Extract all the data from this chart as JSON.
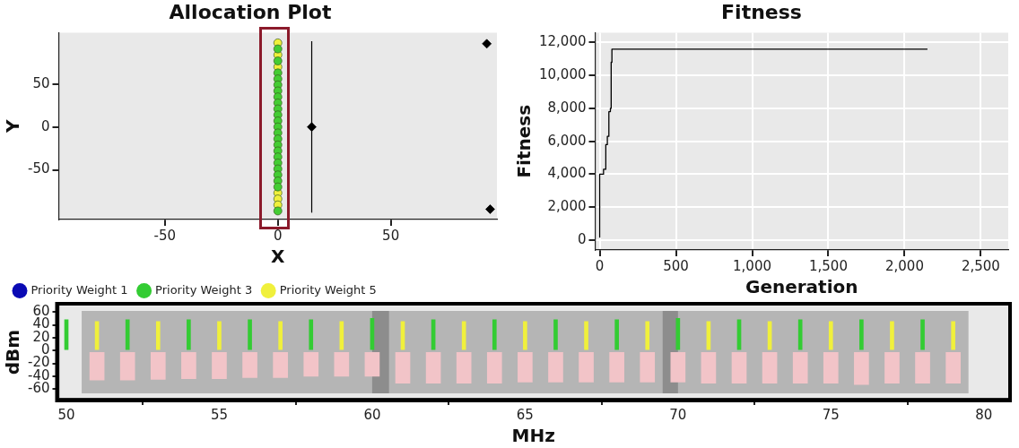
{
  "chart_data": [
    {
      "type": "scatter",
      "title": "Allocation Plot",
      "xlabel": "X",
      "ylabel": "Y",
      "xlim": [
        -97,
        97
      ],
      "ylim": [
        -108,
        110
      ],
      "xticks": [
        -50,
        0,
        50
      ],
      "yticks": [
        -50,
        0,
        50
      ],
      "grid": false,
      "legend": false,
      "marker": "circle",
      "series": [
        {
          "color": "#44cc33",
          "x": [
            0,
            0,
            0,
            0,
            0,
            0,
            0,
            0,
            0,
            0,
            0,
            0,
            0,
            0,
            0,
            0,
            0,
            0,
            0,
            0,
            0,
            0,
            0
          ],
          "values": [
            91,
            77,
            63,
            56,
            49,
            42,
            35,
            28,
            21,
            14,
            7,
            0,
            -7,
            -14,
            -21,
            -28,
            -35,
            -42,
            -49,
            -56,
            -63,
            -70,
            -98
          ]
        },
        {
          "color": "#f0f03c",
          "x": [
            0,
            0,
            0,
            0,
            0,
            0
          ],
          "values": [
            98,
            84,
            70,
            -77,
            -84,
            -91
          ]
        },
        {
          "color": "#000000",
          "marker": "diamond",
          "x": [
            15,
            92.5,
            94
          ],
          "values": [
            0,
            97,
            -96
          ],
          "errors": [
            [
              -100,
              100
            ],
            null,
            null
          ]
        }
      ]
    },
    {
      "type": "step",
      "title": "Fitness",
      "xlabel": "Generation",
      "ylabel": "Fitness",
      "xlim": [
        -30,
        2680
      ],
      "ylim": [
        -600,
        12600
      ],
      "xticks": [
        0,
        500,
        {
          "value": 1000,
          "label": "1,000"
        },
        {
          "value": 1500,
          "label": "1,500"
        },
        {
          "value": 2000,
          "label": "2,000"
        },
        {
          "value": 2500,
          "label": "2,500"
        }
      ],
      "yticks": [
        0,
        {
          "value": 2000,
          "label": "2,000"
        },
        {
          "value": 4000,
          "label": "4,000"
        },
        {
          "value": 6000,
          "label": "6,000"
        },
        {
          "value": 8000,
          "label": "8,000"
        },
        {
          "value": 10000,
          "label": "10,000"
        },
        {
          "value": 12000,
          "label": "12,000"
        }
      ],
      "grid": true,
      "legend": false,
      "series": [
        {
          "color": "#000000",
          "x": [
            0,
            25,
            40,
            50,
            60,
            70,
            75,
            80,
            140,
            2150
          ],
          "values": [
            150,
            4000,
            4300,
            5800,
            6300,
            7800,
            8000,
            10800,
            11600,
            11600
          ]
        }
      ]
    },
    {
      "type": "bar",
      "xlabel": "MHz",
      "ylabel": "dBm",
      "xlim": [
        49.75,
        80.8
      ],
      "ylim": [
        -75,
        70
      ],
      "xticks": [
        50,
        55,
        60,
        65,
        70,
        75,
        80
      ],
      "yticks": [
        -60,
        -40,
        -20,
        0,
        20,
        40,
        60
      ],
      "grid": false,
      "legend": "top left",
      "series": [
        {
          "name": "Priority Weight 1",
          "color": "#0a0ab4"
        },
        {
          "name": "Priority Weight 3",
          "color": "#33cc33",
          "x": [
            50,
            52,
            54,
            56,
            58,
            60,
            62,
            64,
            66,
            68,
            70,
            72,
            74,
            76,
            78
          ],
          "values": [
            48,
            48,
            48,
            48,
            48,
            50,
            48,
            48,
            48,
            48,
            50,
            48,
            48,
            48,
            48
          ]
        },
        {
          "name": "Priority Weight 5",
          "color": "#f0f03c",
          "x": [
            51,
            53,
            55,
            57,
            59,
            61,
            63,
            65,
            67,
            69,
            71,
            73,
            75,
            77,
            79
          ],
          "values": [
            45,
            45,
            45,
            45,
            45,
            45,
            45,
            45,
            45,
            45,
            45,
            45,
            45,
            45,
            45
          ]
        },
        {
          "color": "#f2c4c8",
          "x": [
            51,
            52,
            53,
            54,
            55,
            56,
            57,
            58,
            59,
            60,
            61,
            62,
            63,
            64,
            65,
            66,
            67,
            68,
            69,
            70,
            71,
            72,
            73,
            74,
            75,
            76,
            77,
            78,
            79
          ],
          "base": [
            -3,
            -3,
            -3,
            -3,
            -3,
            -3,
            -3,
            -3,
            -3,
            -3,
            -3,
            -3,
            -3,
            -3,
            -3,
            -3,
            -3,
            -3,
            -3,
            -3,
            -3,
            -3,
            -3,
            -3,
            -3,
            -3,
            -3,
            -3,
            -3
          ],
          "values": [
            -43,
            -43,
            -42,
            -41,
            -41,
            -39,
            -39,
            -37,
            -37,
            -37,
            -48,
            -48,
            -48,
            -48,
            -46,
            -46,
            -46,
            -46,
            -46,
            -46,
            -48,
            -48,
            -48,
            -48,
            -48,
            -50,
            -48,
            -48,
            -48
          ]
        }
      ],
      "bands": [
        {
          "axis": "x",
          "from": 50.5,
          "to": 79.5,
          "color": "#a3a3a3"
        },
        {
          "axis": "x",
          "from": 60,
          "to": 60.55,
          "color": "#808080"
        },
        {
          "axis": "x",
          "from": 69.5,
          "to": 70,
          "color": "#808080"
        }
      ]
    }
  ]
}
